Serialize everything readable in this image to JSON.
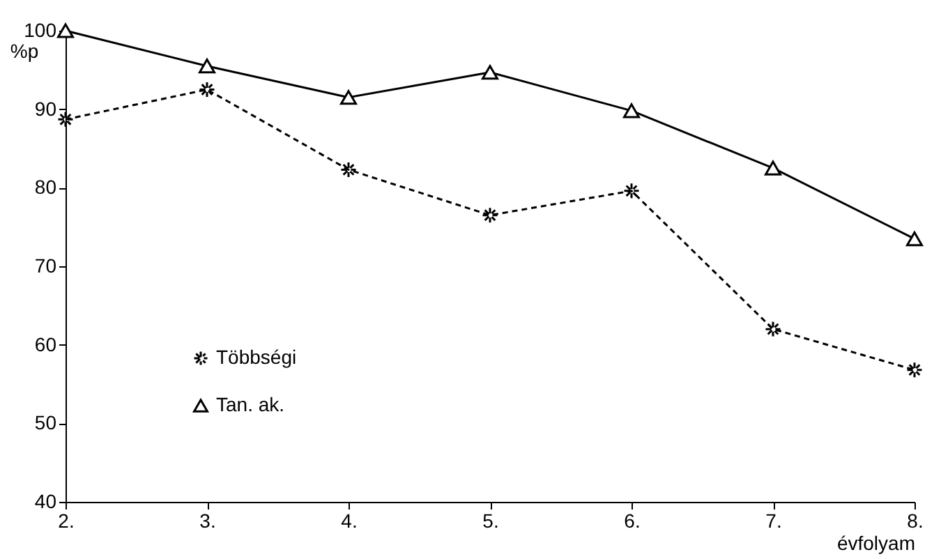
{
  "chart_data": {
    "type": "line",
    "xlabel": "évfolyam",
    "ylabel": "%p",
    "categories": [
      "2.",
      "3.",
      "4.",
      "5.",
      "6.",
      "7.",
      "8."
    ],
    "series": [
      {
        "name": "Többségi",
        "color": "#000000",
        "marker": "cross",
        "line_style": "dashed",
        "values": [
          88.7,
          92.5,
          82.3,
          76.5,
          79.6,
          62,
          56.8
        ]
      },
      {
        "name": "Tan. ak.",
        "color": "#000000",
        "marker": "triangle",
        "line_style": "solid",
        "values": [
          100,
          95.5,
          91.5,
          94.7,
          89.8,
          82.5,
          73.5
        ]
      }
    ],
    "ylim": [
      40,
      100
    ],
    "yticks": [
      40,
      50,
      60,
      70,
      80,
      90,
      100
    ],
    "grid": false,
    "legend": "left"
  }
}
